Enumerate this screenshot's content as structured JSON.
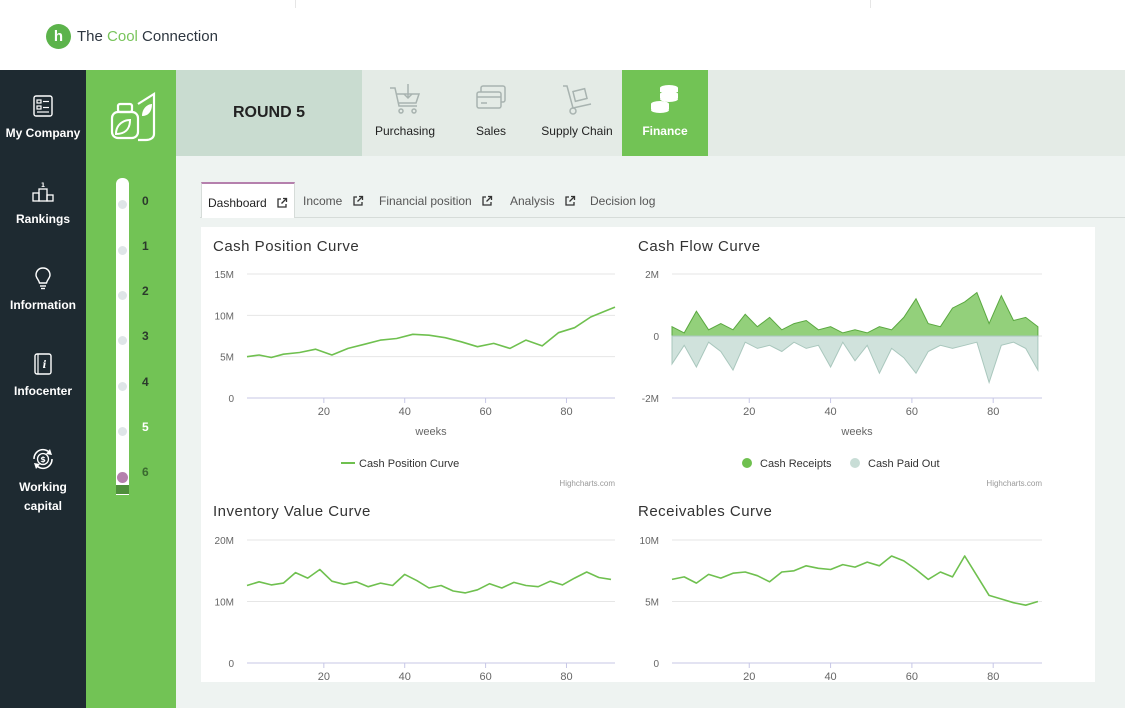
{
  "app": {
    "logo_letter": "h",
    "name_prefix": "The ",
    "name_accent": "Cool",
    "name_suffix": " Connection"
  },
  "sidebar": {
    "items": [
      {
        "label": "My Company",
        "icon": "company-icon"
      },
      {
        "label": "Rankings",
        "icon": "podium-icon"
      },
      {
        "label": "Information",
        "icon": "lightbulb-icon"
      },
      {
        "label": "Infocenter",
        "icon": "info-book-icon"
      },
      {
        "label": "Working capital",
        "icon": "dollar-cycle-icon"
      }
    ]
  },
  "rounds": {
    "labels": [
      "0",
      "1",
      "2",
      "3",
      "4",
      "5",
      "6"
    ],
    "current": "6",
    "active": "5"
  },
  "header": {
    "round_label": "ROUND 5"
  },
  "main_tabs": [
    {
      "label": "Purchasing",
      "icon": "cart-icon"
    },
    {
      "label": "Sales",
      "icon": "cards-icon"
    },
    {
      "label": "Supply Chain",
      "icon": "hand-truck-icon"
    },
    {
      "label": "Finance",
      "icon": "coins-icon",
      "active": true
    }
  ],
  "sub_tabs": [
    {
      "label": "Dashboard",
      "active": true,
      "external": true
    },
    {
      "label": "Income",
      "external": true
    },
    {
      "label": "Financial position",
      "external": true
    },
    {
      "label": "Analysis",
      "external": true
    },
    {
      "label": "Decision log",
      "external": false
    }
  ],
  "colors": {
    "green": "#72c355",
    "line": "#6fc04f",
    "paid": "#c8ddd6",
    "dark": "#1e2a31",
    "accent": "#b580ad"
  },
  "chart_data": [
    {
      "type": "line",
      "title": "Cash Position Curve",
      "xlabel": "weeks",
      "yticks": [
        "15M",
        "10M",
        "5M",
        "0"
      ],
      "xticks": [
        "20",
        "40",
        "60",
        "80"
      ],
      "ylim": [
        0,
        15000000
      ],
      "xlim": [
        1,
        92
      ],
      "credit": "Highcharts.com",
      "series": [
        {
          "name": "Cash Position Curve",
          "x": [
            1,
            4,
            7,
            10,
            14,
            18,
            22,
            26,
            30,
            34,
            38,
            42,
            46,
            50,
            54,
            58,
            62,
            66,
            70,
            74,
            78,
            82,
            86,
            90,
            92
          ],
          "values": [
            5000000,
            5200000,
            4900000,
            5300000,
            5500000,
            5900000,
            5200000,
            6000000,
            6500000,
            7000000,
            7200000,
            7700000,
            7600000,
            7300000,
            6800000,
            6200000,
            6600000,
            6000000,
            7000000,
            6300000,
            7900000,
            8500000,
            9800000,
            10600000,
            11000000
          ]
        }
      ]
    },
    {
      "type": "area",
      "title": "Cash Flow Curve",
      "xlabel": "weeks",
      "yticks": [
        "2M",
        "0",
        "-2M"
      ],
      "xticks": [
        "20",
        "40",
        "60",
        "80"
      ],
      "ylim": [
        -2000000,
        2000000
      ],
      "xlim": [
        1,
        92
      ],
      "credit": "Highcharts.com",
      "series": [
        {
          "name": "Cash Receipts",
          "x": [
            1,
            4,
            7,
            10,
            13,
            16,
            19,
            22,
            25,
            28,
            31,
            34,
            37,
            40,
            43,
            46,
            49,
            52,
            55,
            58,
            61,
            64,
            67,
            70,
            73,
            76,
            79,
            82,
            85,
            88,
            91
          ],
          "values": [
            300000,
            100000,
            800000,
            200000,
            400000,
            200000,
            700000,
            300000,
            600000,
            200000,
            400000,
            500000,
            200000,
            300000,
            100000,
            200000,
            100000,
            300000,
            200000,
            600000,
            1200000,
            400000,
            300000,
            900000,
            1100000,
            1400000,
            400000,
            1300000,
            500000,
            600000,
            300000
          ]
        },
        {
          "name": "Cash Paid Out",
          "x": [
            1,
            4,
            7,
            10,
            13,
            16,
            19,
            22,
            25,
            28,
            31,
            34,
            37,
            40,
            43,
            46,
            49,
            52,
            55,
            58,
            61,
            64,
            67,
            70,
            73,
            76,
            79,
            82,
            85,
            88,
            91
          ],
          "values": [
            -900000,
            -300000,
            -1000000,
            -200000,
            -500000,
            -1100000,
            -200000,
            -400000,
            -300000,
            -500000,
            -200000,
            -400000,
            -300000,
            -1000000,
            -200000,
            -800000,
            -300000,
            -1200000,
            -400000,
            -700000,
            -1200000,
            -500000,
            -300000,
            -400000,
            -300000,
            -200000,
            -1500000,
            -300000,
            -200000,
            -400000,
            -1100000
          ]
        }
      ]
    },
    {
      "type": "line",
      "title": "Inventory Value Curve",
      "yticks": [
        "20M",
        "10M",
        "0"
      ],
      "xticks": [
        "20",
        "40",
        "60",
        "80"
      ],
      "ylim": [
        0,
        20000000
      ],
      "xlim": [
        1,
        92
      ],
      "series": [
        {
          "x": [
            1,
            4,
            7,
            10,
            13,
            16,
            19,
            22,
            25,
            28,
            31,
            34,
            37,
            40,
            43,
            46,
            49,
            52,
            55,
            58,
            61,
            64,
            67,
            70,
            73,
            76,
            79,
            82,
            85,
            88,
            91
          ],
          "values": [
            12600000,
            13200000,
            12700000,
            13000000,
            14700000,
            13800000,
            15200000,
            13300000,
            12800000,
            13200000,
            12400000,
            13000000,
            12600000,
            14400000,
            13400000,
            12200000,
            12600000,
            11700000,
            11400000,
            11900000,
            12900000,
            12200000,
            13100000,
            12600000,
            12400000,
            13300000,
            12700000,
            13800000,
            14800000,
            13900000,
            13600000
          ]
        }
      ]
    },
    {
      "type": "line",
      "title": "Receivables Curve",
      "yticks": [
        "10M",
        "5M",
        "0"
      ],
      "xticks": [
        "20",
        "40",
        "60",
        "80"
      ],
      "ylim": [
        0,
        10000000
      ],
      "xlim": [
        1,
        92
      ],
      "series": [
        {
          "x": [
            1,
            4,
            7,
            10,
            13,
            16,
            19,
            22,
            25,
            28,
            31,
            34,
            37,
            40,
            43,
            46,
            49,
            52,
            55,
            58,
            61,
            64,
            67,
            70,
            73,
            76,
            79,
            82,
            85,
            88,
            91
          ],
          "values": [
            6800000,
            7000000,
            6500000,
            7200000,
            6900000,
            7300000,
            7400000,
            7100000,
            6600000,
            7400000,
            7500000,
            7900000,
            7700000,
            7600000,
            8000000,
            7800000,
            8200000,
            7900000,
            8700000,
            8300000,
            7600000,
            6800000,
            7400000,
            7000000,
            8700000,
            7100000,
            5500000,
            5200000,
            4900000,
            4700000,
            5000000
          ]
        }
      ]
    }
  ]
}
